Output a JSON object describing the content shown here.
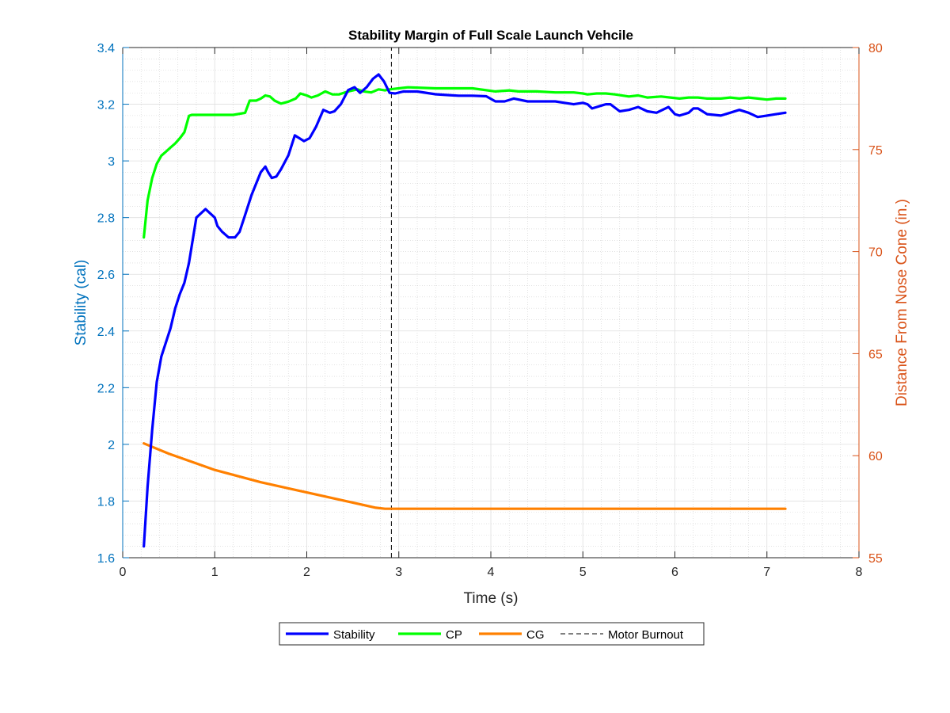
{
  "chart_data": {
    "type": "line",
    "title": "Stability Margin of Full Scale Launch Vehcile",
    "xlabel": "Time (s)",
    "ylabel_left": "Stability (cal)",
    "ylabel_right": "Distance From Nose Cone (in.)",
    "xlim": [
      0,
      8
    ],
    "ylim_left": [
      1.6,
      3.4
    ],
    "ylim_right": [
      55,
      80
    ],
    "x_ticks": [
      "0",
      "1",
      "2",
      "3",
      "4",
      "5",
      "6",
      "7",
      "8"
    ],
    "y_left_ticks": [
      "1.6",
      "1.8",
      "2",
      "2.2",
      "2.4",
      "2.6",
      "2.8",
      "3",
      "3.2",
      "3.4"
    ],
    "y_right_ticks": [
      "55",
      "60",
      "65",
      "70",
      "75",
      "80"
    ],
    "grid": true,
    "minor_grid": true,
    "legend_position": "bottom-outside",
    "colors": {
      "axis_left": "#0072BD",
      "axis_right": "#D95319"
    },
    "series": [
      {
        "name": "Stability",
        "axis": "left",
        "color": "#0000FF",
        "x": [
          0.23,
          0.27,
          0.32,
          0.37,
          0.42,
          0.47,
          0.52,
          0.57,
          0.62,
          0.67,
          0.72,
          0.8,
          0.9,
          1.0,
          1.03,
          1.08,
          1.15,
          1.22,
          1.27,
          1.32,
          1.4,
          1.5,
          1.55,
          1.58,
          1.62,
          1.67,
          1.72,
          1.8,
          1.87,
          1.92,
          1.97,
          2.03,
          2.1,
          2.18,
          2.25,
          2.3,
          2.37,
          2.45,
          2.52,
          2.58,
          2.65,
          2.72,
          2.78,
          2.84,
          2.9,
          2.96,
          3.05,
          3.2,
          3.4,
          3.55,
          3.65,
          3.8,
          3.95,
          4.05,
          4.15,
          4.25,
          4.4,
          4.55,
          4.7,
          4.8,
          4.9,
          5.0,
          5.05,
          5.1,
          5.15,
          5.2,
          5.25,
          5.3,
          5.4,
          5.5,
          5.6,
          5.7,
          5.8,
          5.93,
          6.0,
          6.05,
          6.1,
          6.15,
          6.2,
          6.25,
          6.35,
          6.5,
          6.6,
          6.7,
          6.8,
          6.9,
          7.0,
          7.1,
          7.2
        ],
        "y": [
          1.64,
          1.85,
          2.05,
          2.22,
          2.31,
          2.36,
          2.41,
          2.48,
          2.53,
          2.57,
          2.64,
          2.8,
          2.83,
          2.8,
          2.77,
          2.75,
          2.73,
          2.73,
          2.75,
          2.8,
          2.88,
          2.96,
          2.98,
          2.96,
          2.94,
          2.945,
          2.97,
          3.02,
          3.09,
          3.08,
          3.07,
          3.08,
          3.12,
          3.18,
          3.17,
          3.175,
          3.2,
          3.25,
          3.26,
          3.24,
          3.26,
          3.29,
          3.305,
          3.28,
          3.24,
          3.238,
          3.245,
          3.245,
          3.235,
          3.232,
          3.23,
          3.23,
          3.228,
          3.21,
          3.21,
          3.22,
          3.21,
          3.21,
          3.21,
          3.205,
          3.2,
          3.205,
          3.2,
          3.185,
          3.19,
          3.195,
          3.2,
          3.2,
          3.175,
          3.18,
          3.19,
          3.175,
          3.17,
          3.19,
          3.165,
          3.16,
          3.165,
          3.17,
          3.185,
          3.185,
          3.165,
          3.16,
          3.17,
          3.18,
          3.17,
          3.155,
          3.16,
          3.165,
          3.17
        ]
      },
      {
        "name": "CP",
        "axis": "right",
        "color": "#00FF00",
        "x": [
          0.23,
          0.27,
          0.32,
          0.37,
          0.42,
          0.47,
          0.52,
          0.57,
          0.62,
          0.67,
          0.72,
          0.75,
          0.9,
          1.2,
          1.33,
          1.38,
          1.45,
          1.5,
          1.55,
          1.6,
          1.65,
          1.72,
          1.8,
          1.88,
          1.93,
          2.0,
          2.05,
          2.12,
          2.2,
          2.28,
          2.35,
          2.45,
          2.55,
          2.62,
          2.7,
          2.78,
          2.85,
          2.9,
          3.1,
          3.4,
          3.8,
          4.05,
          4.2,
          4.3,
          4.5,
          4.7,
          4.9,
          5.0,
          5.05,
          5.15,
          5.25,
          5.35,
          5.5,
          5.6,
          5.7,
          5.85,
          5.95,
          6.05,
          6.15,
          6.25,
          6.35,
          6.5,
          6.6,
          6.7,
          6.8,
          6.9,
          7.0,
          7.1,
          7.2
        ],
        "y": [
          70.7,
          72.5,
          73.6,
          74.3,
          74.7,
          74.9,
          75.1,
          75.3,
          75.55,
          75.85,
          76.65,
          76.7,
          76.7,
          76.7,
          76.8,
          77.4,
          77.4,
          77.5,
          77.65,
          77.6,
          77.4,
          77.25,
          77.35,
          77.5,
          77.75,
          77.65,
          77.55,
          77.65,
          77.85,
          77.7,
          77.7,
          77.85,
          77.95,
          77.85,
          77.8,
          77.95,
          77.9,
          77.95,
          78.05,
          78.0,
          78.0,
          77.85,
          77.9,
          77.85,
          77.85,
          77.8,
          77.8,
          77.75,
          77.7,
          77.75,
          77.75,
          77.7,
          77.6,
          77.65,
          77.55,
          77.6,
          77.55,
          77.5,
          77.55,
          77.55,
          77.5,
          77.5,
          77.55,
          77.5,
          77.55,
          77.5,
          77.45,
          77.5,
          77.5
        ]
      },
      {
        "name": "CG",
        "axis": "right",
        "color": "#FF8000",
        "x": [
          0.23,
          0.5,
          1.0,
          1.5,
          2.0,
          2.5,
          2.75,
          2.85,
          3.0,
          4.0,
          5.0,
          6.0,
          7.0,
          7.2
        ],
        "y": [
          60.6,
          60.1,
          59.3,
          58.7,
          58.2,
          57.7,
          57.45,
          57.4,
          57.4,
          57.4,
          57.4,
          57.4,
          57.4,
          57.4
        ]
      },
      {
        "name": "Motor Burnout",
        "axis": "left",
        "color": "#000000",
        "style": "dashed",
        "x": [
          2.92,
          2.92
        ],
        "y": [
          1.6,
          3.4
        ]
      }
    ]
  }
}
